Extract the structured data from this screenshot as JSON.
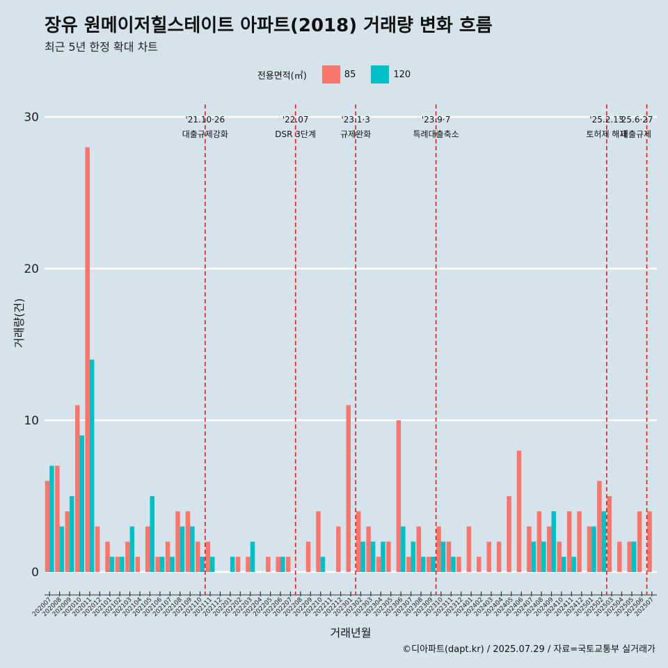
{
  "chart": {
    "title": "장유 원메이저힐스테이트 아파트(2018) 거래량 변화 흐름",
    "subtitle": "최근 5년 한정 확대 차트",
    "legend_title": "전용면적(㎡)",
    "xlabel": "거래년월",
    "ylabel": "거래량(건)",
    "caption": "©디아파트(dapt.kr) / 2025.07.29 / 자료=국토교통부 실거래가"
  },
  "colors": {
    "background": "#d6e3ea",
    "s85": "#f8766d",
    "s120": "#00bfc4",
    "event_line": "#e41a1c",
    "grid": "#ffffff"
  },
  "chart_data": {
    "type": "bar",
    "categories": [
      "202007",
      "202008",
      "202009",
      "202010",
      "202011",
      "202012",
      "202101",
      "202102",
      "202103",
      "202104",
      "202105",
      "202106",
      "202107",
      "202108",
      "202109",
      "202110",
      "202111",
      "202112",
      "202201",
      "202202",
      "202203",
      "202204",
      "202205",
      "202206",
      "202207",
      "202208",
      "202209",
      "202210",
      "202211",
      "202212",
      "202301",
      "202302",
      "202303",
      "202304",
      "202305",
      "202306",
      "202307",
      "202308",
      "202309",
      "202310",
      "202311",
      "202312",
      "202401",
      "202402",
      "202403",
      "202404",
      "202405",
      "202406",
      "202407",
      "202408",
      "202409",
      "202410",
      "202411",
      "202412",
      "202501",
      "202502",
      "202503",
      "202504",
      "202505",
      "202506",
      "202507"
    ],
    "series": [
      {
        "name": "85",
        "values": [
          6,
          7,
          4,
          11,
          28,
          3,
          2,
          1,
          2,
          1,
          3,
          1,
          2,
          4,
          4,
          2,
          2,
          0,
          0,
          1,
          1,
          0,
          1,
          1,
          1,
          0,
          2,
          4,
          0,
          3,
          11,
          4,
          3,
          1,
          2,
          10,
          1,
          3,
          1,
          3,
          2,
          1,
          3,
          1,
          2,
          2,
          5,
          8,
          3,
          4,
          3,
          2,
          4,
          4,
          3,
          6,
          5,
          2,
          2,
          4,
          4
        ]
      },
      {
        "name": "120",
        "values": [
          7,
          3,
          5,
          9,
          14,
          0,
          1,
          1,
          3,
          0,
          5,
          1,
          1,
          3,
          3,
          1,
          1,
          0,
          1,
          0,
          2,
          0,
          0,
          1,
          0,
          0,
          0,
          1,
          0,
          0,
          0,
          2,
          2,
          2,
          0,
          3,
          2,
          1,
          1,
          2,
          1,
          0,
          0,
          0,
          0,
          0,
          0,
          0,
          2,
          2,
          4,
          1,
          1,
          0,
          3,
          4,
          0,
          0,
          2,
          0,
          0
        ]
      }
    ],
    "ylim": [
      0,
      30
    ],
    "yticks": [
      0,
      10,
      20,
      30
    ],
    "events": [
      {
        "after": "202110",
        "date": "'21.10·26",
        "label": "대출규제강화"
      },
      {
        "after": "202207",
        "date": "'22.07",
        "label": "DSR 3단계"
      },
      {
        "after": "202301",
        "date": "'23.1·3",
        "label": "규제완화"
      },
      {
        "after": "202309",
        "date": "'23.9·7",
        "label": "특례대출축소"
      },
      {
        "after": "202502",
        "date": "'25.2.13",
        "label": "토허제 해제"
      },
      {
        "after": "202506",
        "date": "'25.6·27",
        "label": "대출규제"
      }
    ]
  }
}
